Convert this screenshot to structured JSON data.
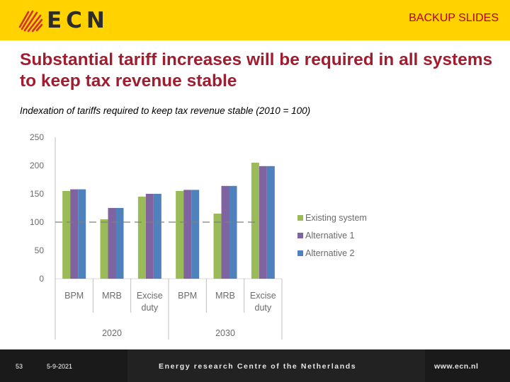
{
  "header": {
    "logo_text": "ECN",
    "section_label": "BACKUP SLIDES"
  },
  "slide": {
    "title": "Substantial tariff increases will be required in all systems to keep tax revenue stable",
    "subtitle": "Indexation of tariffs required to keep tax revenue stable (2010 = 100)"
  },
  "chart_data": {
    "type": "bar",
    "categories": [
      {
        "label": [
          "BPM"
        ],
        "group": "2020"
      },
      {
        "label": [
          "MRB"
        ],
        "group": "2020"
      },
      {
        "label": [
          "Excise",
          "duty"
        ],
        "group": "2020"
      },
      {
        "label": [
          "BPM"
        ],
        "group": "2030"
      },
      {
        "label": [
          "MRB"
        ],
        "group": "2030"
      },
      {
        "label": [
          "Excise",
          "duty"
        ],
        "group": "2030"
      }
    ],
    "groups": [
      "2020",
      "2030"
    ],
    "series": [
      {
        "name": "Existing system",
        "color": "#9BBB59",
        "values": [
          155,
          105,
          145,
          155,
          115,
          205
        ]
      },
      {
        "name": "Alternative 1",
        "color": "#8064A2",
        "values": [
          158,
          125,
          150,
          157,
          164,
          199
        ]
      },
      {
        "name": "Alternative 2",
        "color": "#4F81BD",
        "values": [
          158,
          125,
          150,
          157,
          164,
          199
        ]
      }
    ],
    "yticks": [
      "0",
      "50",
      "100",
      "150",
      "200",
      "250"
    ],
    "ylim": [
      0,
      250
    ],
    "reference_line": 100,
    "legend_position": "right",
    "title": "",
    "xlabel": "",
    "ylabel": ""
  },
  "footer": {
    "page_number": "53",
    "date": "5-9-2021",
    "organization": "Energy research Centre of the Netherlands",
    "url": "www.ecn.nl"
  }
}
